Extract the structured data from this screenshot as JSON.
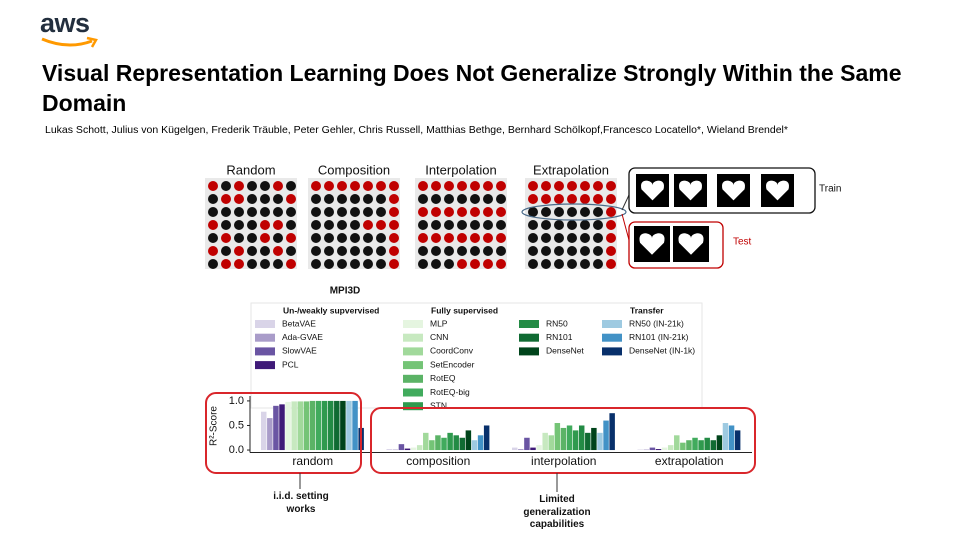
{
  "logo": "aws",
  "title": "Visual Representation Learning Does Not Generalize Strongly Within the Same Domain",
  "authors": "Lukas Schott, Julius von Kügelgen, Frederik Träuble, Peter Gehler, Chris Russell, Matthias Bethge, Bernhard Schölkopf,Francesco Locatello*, Wieland Brendel*",
  "figure": {
    "panels": [
      "Random",
      "Composition",
      "Interpolation",
      "Extrapolation"
    ],
    "train_label": "Train",
    "test_label": "Test"
  },
  "chart_data": {
    "type": "bar",
    "title": "MPI3D",
    "y_label": "R²-Score",
    "categories": [
      "random",
      "composition",
      "interpolation",
      "extrapolation"
    ],
    "ylim": [
      -0.05,
      1.1
    ],
    "yticks": [
      {
        "value": 0,
        "label": "0.0"
      },
      {
        "value": 0.5,
        "label": "0.5"
      },
      {
        "value": 1,
        "label": "1.0"
      }
    ],
    "groups": [
      {
        "title": "Un-/weakly supvervised",
        "series": [
          {
            "name": "BetaVAE",
            "color": "#d9d4e8",
            "values": [
              0.78,
              0.02,
              0.05,
              0.01
            ]
          },
          {
            "name": "Ada-GVAE",
            "color": "#a99cc9",
            "values": [
              0.65,
              0.01,
              0.02,
              0.01
            ]
          },
          {
            "name": "SlowVAE",
            "color": "#6a55a3",
            "values": [
              0.9,
              0.12,
              0.25,
              0.05
            ]
          },
          {
            "name": "PCL",
            "color": "#3f1a78",
            "values": [
              0.93,
              0.03,
              0.05,
              0.02
            ]
          }
        ]
      },
      {
        "title": "Fully supervised",
        "series": [
          {
            "name": "MLP",
            "color": "#e5f5e0",
            "values": [
              0.98,
              0.05,
              0.1,
              0.05
            ]
          },
          {
            "name": "CNN",
            "color": "#c7e9c0",
            "values": [
              0.99,
              0.1,
              0.35,
              0.1
            ]
          },
          {
            "name": "CoordConv",
            "color": "#a1d99b",
            "values": [
              0.99,
              0.35,
              0.3,
              0.3
            ]
          },
          {
            "name": "SetEncoder",
            "color": "#74c476",
            "values": [
              0.99,
              0.2,
              0.55,
              0.15
            ]
          },
          {
            "name": "RotEQ",
            "color": "#5bb366",
            "values": [
              1,
              0.3,
              0.45,
              0.2
            ]
          },
          {
            "name": "RotEQ-big",
            "color": "#41ab5d",
            "values": [
              1,
              0.25,
              0.5,
              0.25
            ]
          },
          {
            "name": "STN",
            "color": "#2f9a4e",
            "values": [
              1,
              0.35,
              0.4,
              0.2
            ]
          },
          {
            "name": "RN50",
            "color": "#238b45",
            "values": [
              1,
              0.3,
              0.5,
              0.25
            ]
          },
          {
            "name": "RN101",
            "color": "#106b33",
            "values": [
              1,
              0.25,
              0.35,
              0.2
            ]
          },
          {
            "name": "DenseNet",
            "color": "#00441b",
            "values": [
              1,
              0.4,
              0.45,
              0.3
            ]
          }
        ]
      },
      {
        "title": "Transfer",
        "series": [
          {
            "name": "RN50 (IN-21k)",
            "color": "#9ecae1",
            "values": [
              1,
              0.2,
              0.35,
              0.55
            ]
          },
          {
            "name": "RN101 (IN-21k)",
            "color": "#4292c6",
            "values": [
              1,
              0.3,
              0.6,
              0.5
            ]
          },
          {
            "name": "DenseNet (IN-1k)",
            "color": "#08306b",
            "values": [
              0.45,
              0.5,
              0.75,
              0.4
            ]
          }
        ]
      }
    ],
    "annotations": [
      "i.i.d. setting works",
      "Limited generalization capabilities"
    ]
  }
}
